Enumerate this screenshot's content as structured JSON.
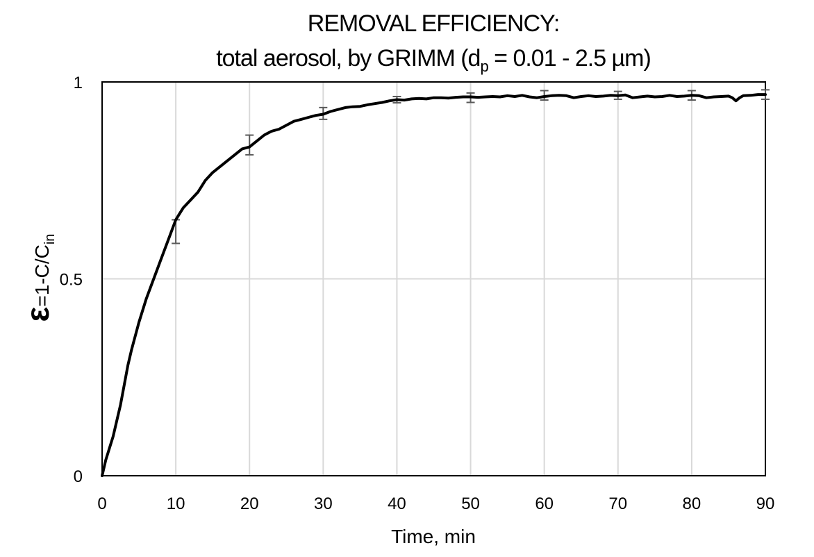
{
  "chart_data": {
    "type": "line",
    "title": "REMOVAL EFFICIENCY:",
    "subtitle": {
      "prefix": "total aerosol, by GRIMM (d",
      "subscript": "p",
      "suffix": " = 0.01 - 2.5 µm)"
    },
    "xlabel": "Time, min",
    "ylabel": {
      "symbol": "ε",
      "text": "=1-C/C",
      "subscript": "in"
    },
    "xlim": [
      0,
      90
    ],
    "ylim": [
      0,
      1
    ],
    "x_ticks": [
      0,
      10,
      20,
      30,
      40,
      50,
      60,
      70,
      80,
      90
    ],
    "x_tick_labels": [
      "0",
      "10",
      "20",
      "30",
      "40",
      "50",
      "60",
      "70",
      "80",
      "90"
    ],
    "y_ticks": [
      0,
      0.5,
      1
    ],
    "y_tick_labels": [
      "0",
      "0.5",
      "1"
    ],
    "grid": true,
    "series": [
      {
        "color": "#000000",
        "x": [
          0,
          0.5,
          1,
          1.5,
          2,
          2.5,
          3,
          3.5,
          4,
          5,
          6,
          7,
          8,
          9,
          10,
          11,
          12,
          13,
          14,
          15,
          16,
          17,
          18,
          19,
          20,
          21,
          22,
          23,
          24,
          25,
          26,
          27,
          28,
          29,
          30,
          31,
          32,
          33,
          34,
          35,
          36,
          37,
          38,
          39,
          40,
          41,
          42,
          43,
          44,
          45,
          46,
          47,
          48,
          49,
          50,
          51,
          52,
          53,
          54,
          55,
          56,
          57,
          58,
          59,
          60,
          61,
          62,
          63,
          64,
          65,
          66,
          67,
          68,
          69,
          70,
          71,
          72,
          73,
          74,
          75,
          76,
          77,
          78,
          79,
          80,
          81,
          82,
          83,
          84,
          85,
          85.5,
          86,
          86.5,
          87,
          88,
          89,
          90
        ],
        "y": [
          0,
          0.04,
          0.07,
          0.1,
          0.14,
          0.18,
          0.23,
          0.28,
          0.32,
          0.39,
          0.45,
          0.5,
          0.55,
          0.6,
          0.65,
          0.68,
          0.7,
          0.72,
          0.75,
          0.77,
          0.785,
          0.8,
          0.815,
          0.83,
          0.835,
          0.85,
          0.865,
          0.875,
          0.88,
          0.89,
          0.9,
          0.905,
          0.91,
          0.915,
          0.918,
          0.925,
          0.93,
          0.935,
          0.937,
          0.938,
          0.942,
          0.945,
          0.948,
          0.952,
          0.955,
          0.954,
          0.957,
          0.958,
          0.957,
          0.96,
          0.96,
          0.959,
          0.961,
          0.962,
          0.962,
          0.961,
          0.962,
          0.963,
          0.962,
          0.965,
          0.963,
          0.966,
          0.962,
          0.96,
          0.963,
          0.965,
          0.966,
          0.965,
          0.96,
          0.963,
          0.965,
          0.963,
          0.964,
          0.966,
          0.965,
          0.967,
          0.96,
          0.962,
          0.964,
          0.962,
          0.963,
          0.966,
          0.963,
          0.964,
          0.966,
          0.965,
          0.96,
          0.962,
          0.963,
          0.964,
          0.96,
          0.952,
          0.96,
          0.965,
          0.966,
          0.968,
          0.968
        ]
      }
    ],
    "error_bars": {
      "color": "#595959",
      "x": [
        10,
        20,
        30,
        40,
        50,
        60,
        70,
        80,
        90
      ],
      "y": [
        0.62,
        0.84,
        0.92,
        0.955,
        0.96,
        0.966,
        0.966,
        0.966,
        0.968
      ],
      "err": [
        0.03,
        0.025,
        0.015,
        0.008,
        0.012,
        0.012,
        0.01,
        0.012,
        0.012
      ]
    }
  }
}
